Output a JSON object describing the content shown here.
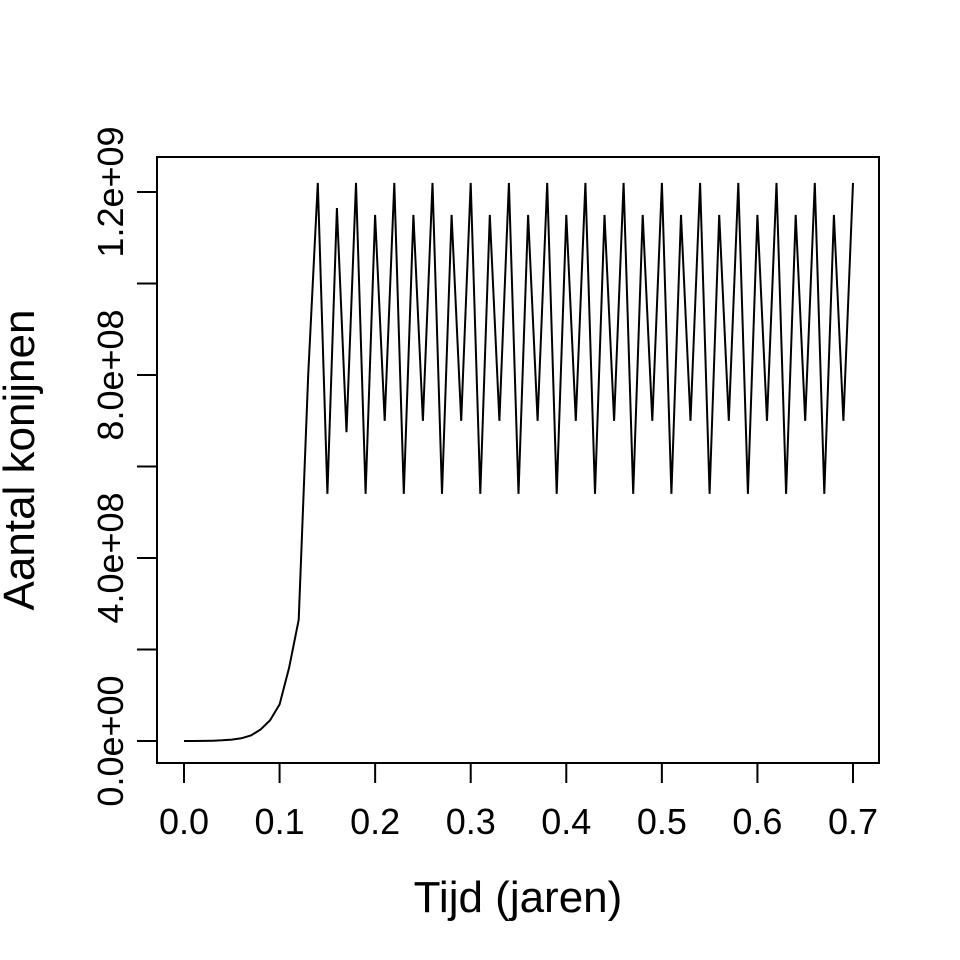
{
  "chart_data": {
    "type": "line",
    "title": "",
    "xlabel": "Tijd (jaren)",
    "ylabel": "Aantal konijnen",
    "xlim": [
      -0.0147,
      0.7147
    ],
    "ylim": [
      -9000000.0,
      2550000000.0
    ],
    "ylim_note": "",
    "x_ticks": [
      0.0,
      0.1,
      0.2,
      0.3,
      0.4,
      0.5,
      0.6,
      0.7
    ],
    "x_tick_labels": [
      "0.0",
      "0.1",
      "0.2",
      "0.3",
      "0.4",
      "0.5",
      "0.6",
      "0.7"
    ],
    "y_ticks": [
      0,
      200000000,
      400000000,
      600000000,
      800000000,
      1000000000,
      1200000000
    ],
    "y_tick_labels": [
      "0.0e+00",
      "",
      "4.0e+08",
      "",
      "8.0e+08",
      "",
      "1.2e+09"
    ],
    "grid": false,
    "color": "#000000",
    "series": [
      {
        "name": "",
        "x": [
          0.0,
          0.01,
          0.02,
          0.03,
          0.04,
          0.05,
          0.06,
          0.07,
          0.08,
          0.09,
          0.1,
          0.11,
          0.12,
          0.13,
          0.14,
          0.15,
          0.16,
          0.17,
          0.18,
          0.19,
          0.2,
          0.21,
          0.22,
          0.23,
          0.24,
          0.25,
          0.26,
          0.27,
          0.28,
          0.29,
          0.3,
          0.31,
          0.32,
          0.33,
          0.34,
          0.35,
          0.36,
          0.37,
          0.38,
          0.39,
          0.4,
          0.41,
          0.42,
          0.43,
          0.44,
          0.45,
          0.46,
          0.47,
          0.48,
          0.49,
          0.5,
          0.51,
          0.52,
          0.53,
          0.54,
          0.55,
          0.56,
          0.57,
          0.58,
          0.59,
          0.6,
          0.61,
          0.62,
          0.63,
          0.64,
          0.65,
          0.66,
          0.67,
          0.68,
          0.69,
          0.7
        ],
        "values": [
          0,
          100000,
          300000,
          700000,
          1500000,
          3000000,
          6000000,
          12000000,
          25000000,
          45000000,
          80000000,
          160000000,
          265000000,
          800000000,
          1220000000,
          540000000,
          1165000000,
          675000000,
          1220000000,
          540000000,
          1150000000,
          700000000,
          1220000000,
          540000000,
          1150000000,
          700000000,
          1220000000,
          540000000,
          1150000000,
          700000000,
          1220000000,
          540000000,
          1150000000,
          700000000,
          1220000000,
          540000000,
          1150000000,
          700000000,
          1220000000,
          540000000,
          1150000000,
          700000000,
          1220000000,
          540000000,
          1150000000,
          700000000,
          1220000000,
          540000000,
          1150000000,
          700000000,
          1220000000,
          540000000,
          1150000000,
          700000000,
          1220000000,
          540000000,
          1150000000,
          700000000,
          1220000000,
          540000000,
          1150000000,
          700000000,
          1220000000,
          540000000,
          1150000000,
          700000000,
          1220000000,
          540000000,
          1150000000,
          700000000,
          1220000000
        ]
      }
    ]
  }
}
